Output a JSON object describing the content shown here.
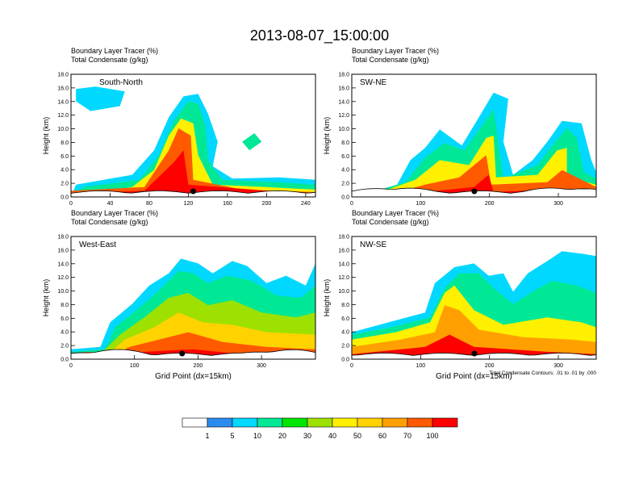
{
  "title": "2013-08-07_15:00:00",
  "colorbar": {
    "colors": [
      "#ffffff",
      "#2b8cf0",
      "#00d8ff",
      "#00e896",
      "#00e600",
      "#9ee100",
      "#fff000",
      "#ffd200",
      "#ffa000",
      "#ff5a00",
      "#ff0000"
    ],
    "labels": [
      "1",
      "5",
      "10",
      "20",
      "30",
      "40",
      "50",
      "60",
      "70",
      "100"
    ]
  },
  "chart_data": [
    {
      "type": "heatmap",
      "title": "South-North",
      "header_lines": [
        "Boundary Layer Tracer   (%)",
        "Total Condensate   (g/kg)"
      ],
      "ylabel": "Height (km)",
      "xlabel": "",
      "xlim": [
        0,
        250
      ],
      "ylim": [
        0,
        18
      ],
      "xticks": [
        "0",
        "40",
        "80",
        "120",
        "160",
        "200",
        "240"
      ],
      "yticks": [
        "0.0",
        "2.0",
        "4.0",
        "6.0",
        "8.0",
        "10.0",
        "12.0",
        "14.0",
        "16.0",
        "18.0"
      ],
      "marker_x": 125
    },
    {
      "type": "heatmap",
      "title": "SW-NE",
      "header_lines": [
        "Boundary Layer Tracer   (%)",
        "Total Condensate   (g/kg)"
      ],
      "ylabel": "Height (km)",
      "xlabel": "",
      "xlim": [
        0,
        355
      ],
      "ylim": [
        0,
        18
      ],
      "xticks": [
        "0",
        "100",
        "200",
        "300"
      ],
      "yticks": [
        "0.0",
        "2.0",
        "4.0",
        "6.0",
        "8.0",
        "10.0",
        "12.0",
        "14.0",
        "16.0",
        "18.0"
      ],
      "marker_x": 178
    },
    {
      "type": "heatmap",
      "title": "West-East",
      "header_lines": [
        "Boundary Layer Tracer   (%)",
        "Total Condensate   (g/kg)"
      ],
      "ylabel": "Height (km)",
      "xlabel": "Grid Point (dx=15km)",
      "xlim": [
        0,
        385
      ],
      "ylim": [
        0,
        18
      ],
      "xticks": [
        "0",
        "100",
        "200",
        "300"
      ],
      "yticks": [
        "0.0",
        "2.0",
        "4.0",
        "6.0",
        "8.0",
        "10.0",
        "12.0",
        "14.0",
        "16.0",
        "18.0"
      ],
      "marker_x": 175
    },
    {
      "type": "heatmap",
      "title": "NW-SE",
      "header_lines": [
        "Boundary Layer Tracer   (%)",
        "Total Condensate   (g/kg)"
      ],
      "ylabel": "Height (km)",
      "xlabel": "Grid Point (dx=15km)",
      "xlim": [
        0,
        355
      ],
      "ylim": [
        0,
        18
      ],
      "xticks": [
        "0",
        "100",
        "200",
        "300"
      ],
      "yticks": [
        "0.0",
        "2.0",
        "4.0",
        "6.0",
        "8.0",
        "10.0",
        "12.0",
        "14.0",
        "16.0",
        "18.0"
      ],
      "marker_x": 178,
      "footnote": "Total Condensate Contours: .01 to .01 by .000"
    }
  ]
}
